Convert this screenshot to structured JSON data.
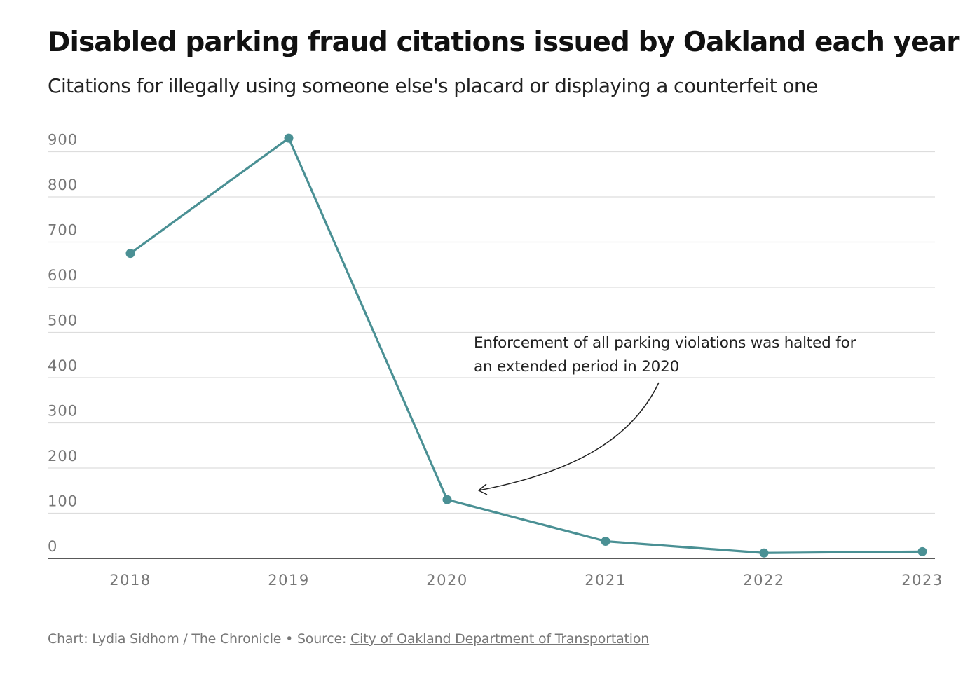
{
  "header": {
    "title": "Disabled parking fraud citations issued by Oakland each year",
    "subtitle": "Citations for illegally using someone else's placard or displaying a counterfeit one"
  },
  "chart_data": {
    "type": "line",
    "title": "Disabled parking fraud citations issued by Oakland each year",
    "subtitle": "Citations for illegally using someone else's placard or displaying a counterfeit one",
    "xlabel": "",
    "ylabel": "",
    "categories": [
      "2018",
      "2019",
      "2020",
      "2021",
      "2022",
      "2023"
    ],
    "series": [
      {
        "values": [
          675,
          930,
          130,
          38,
          12,
          15
        ]
      }
    ],
    "ylim": [
      0,
      930
    ],
    "yticks": [
      "900",
      "800",
      "700",
      "600",
      "500",
      "400",
      "300",
      "200",
      "100",
      "0"
    ],
    "grid": true,
    "legend": "none",
    "annotation": {
      "lines": [
        "Enforcement of all parking violations was halted for",
        "an extended period in 2020"
      ],
      "points_to": "2020"
    },
    "colors": {
      "line": "#4a9094",
      "grid": "#dddddd",
      "axis": "#222222",
      "tick_label": "#777777"
    }
  },
  "footer": {
    "credit": "Chart: Lydia Sidhom / The Chronicle • Source: ",
    "source_link": "City of Oakland Department of Transportation"
  }
}
